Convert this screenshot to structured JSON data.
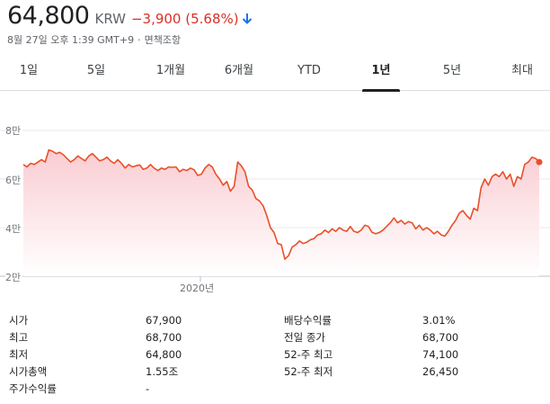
{
  "quote": {
    "price": "64,800",
    "currency": "KRW",
    "change": "−3,900 (5.68%)",
    "direction": "down",
    "down_color": "#d93025"
  },
  "timestamp": {
    "datetime": "8월 27일 오후 1:39 GMT+9",
    "separator": "·",
    "disclaimer": "면책조항"
  },
  "tabs": [
    {
      "label": "1일"
    },
    {
      "label": "5일"
    },
    {
      "label": "1개월"
    },
    {
      "label": "6개월"
    },
    {
      "label": "YTD"
    },
    {
      "label": "1년",
      "active": true
    },
    {
      "label": "5년"
    },
    {
      "label": "최대"
    }
  ],
  "chart_data": {
    "type": "area",
    "y_ticks": [
      "8만",
      "6만",
      "4만",
      "2만"
    ],
    "ylim": [
      20000,
      80000
    ],
    "x_tick": "2020년",
    "line_color": "#e8502a",
    "fill_color": "#fbd5d9",
    "grid": true,
    "y": [
      66000,
      65000,
      66500,
      66000,
      67000,
      68000,
      67000,
      72000,
      71500,
      70500,
      71000,
      70000,
      68500,
      67000,
      68000,
      69500,
      68500,
      67500,
      69500,
      70500,
      69000,
      67500,
      68000,
      69000,
      67500,
      66500,
      68000,
      66500,
      64500,
      66000,
      65000,
      65500,
      65800,
      64000,
      64500,
      66000,
      64500,
      63500,
      64500,
      64000,
      65000,
      64800,
      65000,
      63000,
      64000,
      63500,
      64500,
      63800,
      61500,
      62000,
      64500,
      66000,
      65000,
      62000,
      60000,
      57500,
      59000,
      55000,
      57000,
      67000,
      65500,
      63000,
      57000,
      55500,
      52000,
      51000,
      49000,
      45000,
      40000,
      38000,
      33500,
      33000,
      27000,
      28500,
      32000,
      33000,
      34500,
      33500,
      34000,
      35000,
      35500,
      37000,
      37500,
      39000,
      38000,
      39500,
      38500,
      40000,
      39000,
      38500,
      40500,
      38500,
      38000,
      39000,
      41000,
      40500,
      38000,
      37500,
      38000,
      39000,
      40500,
      42000,
      44000,
      42000,
      43000,
      41500,
      42500,
      42000,
      39500,
      41000,
      39000,
      40000,
      39000,
      37500,
      38500,
      37000,
      36500,
      38500,
      41000,
      43000,
      46000,
      47000,
      45000,
      43500,
      48000,
      47000,
      56500,
      60000,
      57500,
      61000,
      62000,
      61000,
      63000,
      60000,
      62000,
      57000,
      61000,
      60000,
      66000,
      67000,
      69000,
      68500,
      67000
    ]
  },
  "stats": {
    "left": [
      {
        "label": "시가",
        "value": "67,900"
      },
      {
        "label": "최고",
        "value": "68,700"
      },
      {
        "label": "최저",
        "value": "64,800"
      },
      {
        "label": "시가총액",
        "value": "1.55조"
      },
      {
        "label": "주가수익률",
        "value": "-"
      }
    ],
    "right": [
      {
        "label": "배당수익률",
        "value": "3.01%"
      },
      {
        "label": "전일 종가",
        "value": "68,700"
      },
      {
        "label": "52-주 최고",
        "value": "74,100"
      },
      {
        "label": "52-주 최저",
        "value": "26,450"
      }
    ]
  }
}
